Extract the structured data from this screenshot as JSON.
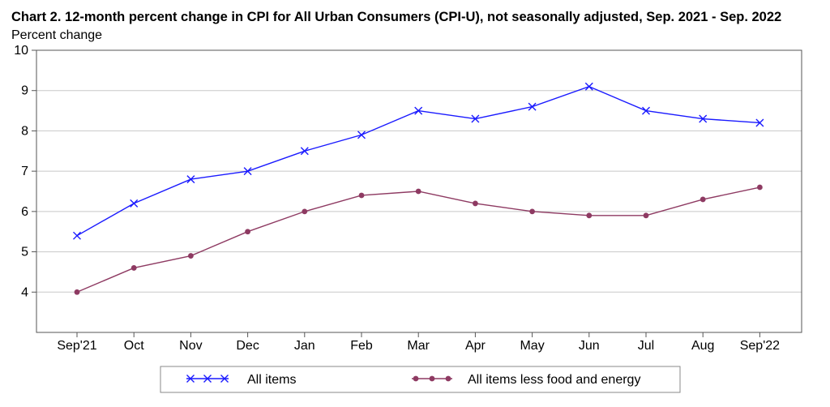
{
  "chart_data": {
    "type": "line",
    "title": "Chart 2. 12-month percent change in CPI for All Urban Consumers (CPI-U), not seasonally adjusted, Sep. 2021 - Sep. 2022",
    "ylabel": "Percent change",
    "xlabel": "",
    "categories": [
      "Sep'21",
      "Oct",
      "Nov",
      "Dec",
      "Jan",
      "Feb",
      "Mar",
      "Apr",
      "May",
      "Jun",
      "Jul",
      "Aug",
      "Sep'22"
    ],
    "ylim": [
      3,
      10
    ],
    "yticks": [
      4,
      5,
      6,
      7,
      8,
      9,
      10
    ],
    "grid": true,
    "legend": "bottom",
    "series": [
      {
        "name": "All items",
        "color": "#1a1aff",
        "marker": "x",
        "values": [
          5.4,
          6.2,
          6.8,
          7.0,
          7.5,
          7.9,
          8.5,
          8.3,
          8.6,
          9.1,
          8.5,
          8.3,
          8.2
        ]
      },
      {
        "name": "All items less food and energy",
        "color": "#8e3a62",
        "marker": "circle",
        "values": [
          4.0,
          4.6,
          4.9,
          5.5,
          6.0,
          6.4,
          6.5,
          6.2,
          6.0,
          5.9,
          5.9,
          6.3,
          6.6
        ]
      }
    ]
  }
}
